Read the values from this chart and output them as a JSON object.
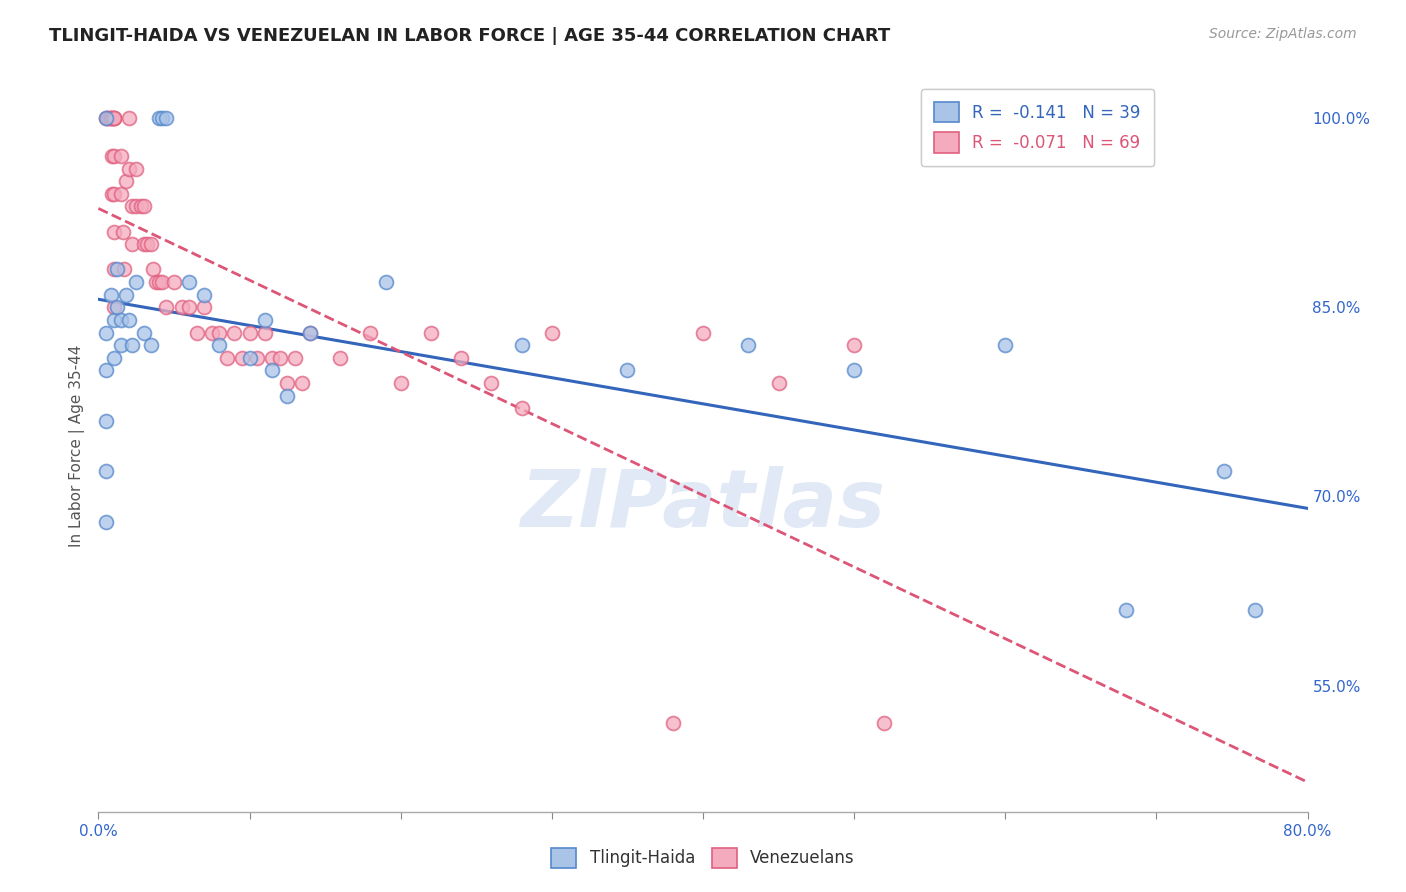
{
  "title": "TLINGIT-HAIDA VS VENEZUELAN IN LABOR FORCE | AGE 35-44 CORRELATION CHART",
  "source": "Source: ZipAtlas.com",
  "ylabel": "In Labor Force | Age 35-44",
  "xlim": [
    0.0,
    0.8
  ],
  "ylim": [
    0.45,
    1.03
  ],
  "x_ticks": [
    0.0,
    0.1,
    0.2,
    0.3,
    0.4,
    0.5,
    0.6,
    0.7,
    0.8
  ],
  "y_ticks_right": [
    0.55,
    0.7,
    0.85,
    1.0
  ],
  "y_tick_labels_right": [
    "55.0%",
    "70.0%",
    "85.0%",
    "100.0%"
  ],
  "legend_r1": "R =  -0.141   N = 39",
  "legend_r2": "R =  -0.071   N = 69",
  "tlingit_color": "#aac4e8",
  "venezuelan_color": "#f5abbe",
  "tlingit_edge_color": "#5588cc",
  "venezuelan_edge_color": "#e06080",
  "tlingit_line_color": "#3366bb",
  "venezuelan_line_color": "#dd5577",
  "watermark_text": "ZIPatlas",
  "tlingit_x": [
    0.005,
    0.04,
    0.042,
    0.045,
    0.005,
    0.005,
    0.005,
    0.005,
    0.005,
    0.008,
    0.01,
    0.01,
    0.012,
    0.012,
    0.015,
    0.015,
    0.018,
    0.02,
    0.022,
    0.025,
    0.03,
    0.035,
    0.06,
    0.07,
    0.08,
    0.1,
    0.11,
    0.115,
    0.125,
    0.14,
    0.19,
    0.28,
    0.35,
    0.43,
    0.5,
    0.6,
    0.68,
    0.745,
    0.765
  ],
  "tlingit_y": [
    1.0,
    1.0,
    1.0,
    1.0,
    0.83,
    0.8,
    0.76,
    0.72,
    0.68,
    0.86,
    0.84,
    0.81,
    0.88,
    0.85,
    0.84,
    0.82,
    0.86,
    0.84,
    0.82,
    0.87,
    0.83,
    0.82,
    0.87,
    0.86,
    0.82,
    0.81,
    0.84,
    0.8,
    0.78,
    0.83,
    0.87,
    0.82,
    0.8,
    0.82,
    0.8,
    0.82,
    0.61,
    0.72,
    0.61
  ],
  "venezuelan_x": [
    0.005,
    0.006,
    0.007,
    0.008,
    0.008,
    0.009,
    0.009,
    0.009,
    0.01,
    0.01,
    0.01,
    0.01,
    0.01,
    0.01,
    0.01,
    0.01,
    0.015,
    0.015,
    0.016,
    0.017,
    0.018,
    0.02,
    0.02,
    0.022,
    0.022,
    0.025,
    0.025,
    0.028,
    0.03,
    0.03,
    0.032,
    0.035,
    0.036,
    0.038,
    0.04,
    0.042,
    0.045,
    0.05,
    0.055,
    0.06,
    0.065,
    0.07,
    0.075,
    0.08,
    0.085,
    0.09,
    0.095,
    0.1,
    0.105,
    0.11,
    0.115,
    0.12,
    0.125,
    0.13,
    0.135,
    0.14,
    0.16,
    0.18,
    0.2,
    0.22,
    0.24,
    0.26,
    0.28,
    0.3,
    0.38,
    0.4,
    0.45,
    0.5,
    0.52
  ],
  "venezuelan_y": [
    1.0,
    1.0,
    1.0,
    1.0,
    1.0,
    1.0,
    0.97,
    0.94,
    1.0,
    1.0,
    1.0,
    0.97,
    0.94,
    0.91,
    0.88,
    0.85,
    0.97,
    0.94,
    0.91,
    0.88,
    0.95,
    1.0,
    0.96,
    0.93,
    0.9,
    0.96,
    0.93,
    0.93,
    0.93,
    0.9,
    0.9,
    0.9,
    0.88,
    0.87,
    0.87,
    0.87,
    0.85,
    0.87,
    0.85,
    0.85,
    0.83,
    0.85,
    0.83,
    0.83,
    0.81,
    0.83,
    0.81,
    0.83,
    0.81,
    0.83,
    0.81,
    0.81,
    0.79,
    0.81,
    0.79,
    0.83,
    0.81,
    0.83,
    0.79,
    0.83,
    0.81,
    0.79,
    0.77,
    0.83,
    0.52,
    0.83,
    0.79,
    0.82,
    0.52
  ]
}
